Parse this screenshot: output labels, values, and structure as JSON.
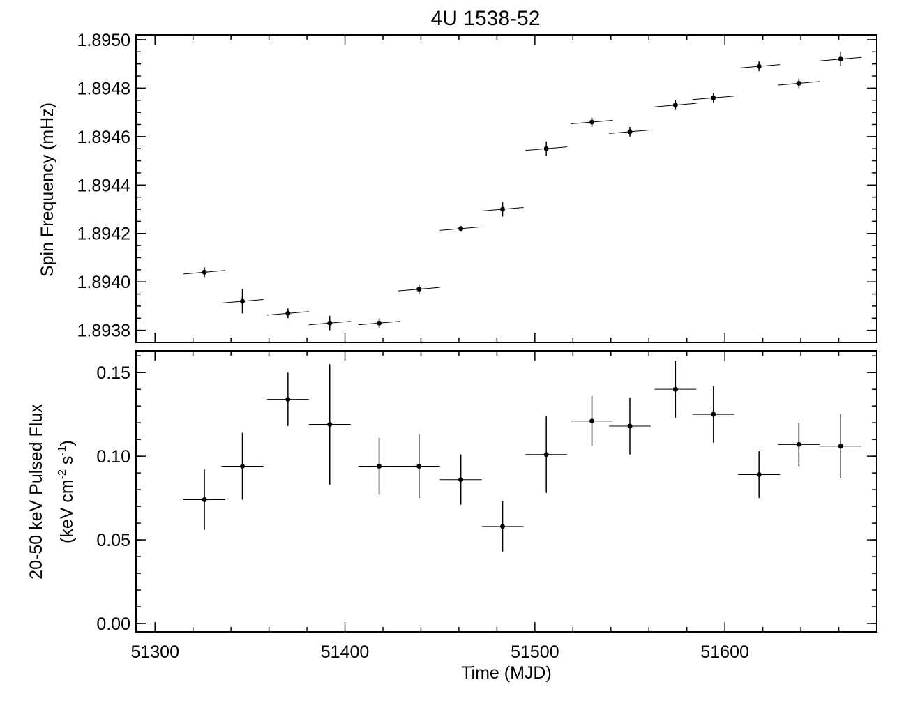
{
  "chart_data": [
    {
      "type": "scatter",
      "title": "4U 1538-52",
      "xlabel": "",
      "ylabel": "Spin Frequency (mHz)",
      "xlim": [
        51290,
        51680
      ],
      "ylim": [
        1.89375,
        1.89502
      ],
      "grid": false,
      "x_ticks": [
        "51300",
        "51400",
        "51500",
        "51600"
      ],
      "y_ticks": [
        "1.8938",
        "1.8940",
        "1.8942",
        "1.8944",
        "1.8946",
        "1.8948",
        "1.8950"
      ],
      "series": [
        {
          "x": [
            51326,
            51346,
            51370,
            51392,
            51418,
            51439,
            51461,
            51483,
            51506,
            51530,
            51550,
            51574,
            51594,
            51618,
            51639,
            51661
          ],
          "y": [
            1.89404,
            1.89392,
            1.89387,
            1.89383,
            1.89383,
            1.89397,
            1.89422,
            1.8943,
            1.89455,
            1.89466,
            1.89462,
            1.89473,
            1.89476,
            1.89489,
            1.89482,
            1.89492
          ],
          "y_err": [
            2e-05,
            5e-05,
            2e-05,
            3e-05,
            2e-05,
            2e-05,
            1e-05,
            3e-05,
            3e-05,
            2e-05,
            2e-05,
            2e-05,
            2e-05,
            2e-05,
            2e-05,
            3e-05
          ],
          "x_err": [
            11,
            11,
            11,
            11,
            11,
            11,
            11,
            11,
            11,
            11,
            11,
            11,
            11,
            11,
            11,
            11
          ],
          "segment_slope": 6.6e-07
        }
      ]
    },
    {
      "type": "scatter",
      "title": "",
      "xlabel": "Time (MJD)",
      "ylabel_line1": "20-50 keV Pulsed Flux",
      "ylabel_line2_prefix": "(keV cm",
      "ylabel_line2_exp1": "-2",
      "ylabel_line2_mid": " s",
      "ylabel_line2_exp2": "-1",
      "ylabel_line2_suffix": ")",
      "xlim": [
        51290,
        51680
      ],
      "ylim": [
        -0.005,
        0.163
      ],
      "grid": false,
      "x_ticks": [
        "51300",
        "51400",
        "51500",
        "51600"
      ],
      "y_ticks": [
        "0.00",
        "0.05",
        "0.10",
        "0.15"
      ],
      "series": [
        {
          "x": [
            51326,
            51346,
            51370,
            51392,
            51418,
            51439,
            51461,
            51483,
            51506,
            51530,
            51550,
            51574,
            51594,
            51618,
            51639,
            51661
          ],
          "y": [
            0.074,
            0.094,
            0.134,
            0.119,
            0.094,
            0.094,
            0.086,
            0.058,
            0.101,
            0.121,
            0.118,
            0.14,
            0.125,
            0.089,
            0.107,
            0.106
          ],
          "y_err": [
            0.018,
            0.02,
            0.016,
            0.036,
            0.017,
            0.019,
            0.015,
            0.015,
            0.023,
            0.015,
            0.017,
            0.017,
            0.017,
            0.014,
            0.013,
            0.019
          ],
          "x_err": [
            11,
            11,
            11,
            11,
            11,
            11,
            11,
            11,
            11,
            11,
            11,
            11,
            11,
            11,
            11,
            11
          ]
        }
      ]
    }
  ]
}
